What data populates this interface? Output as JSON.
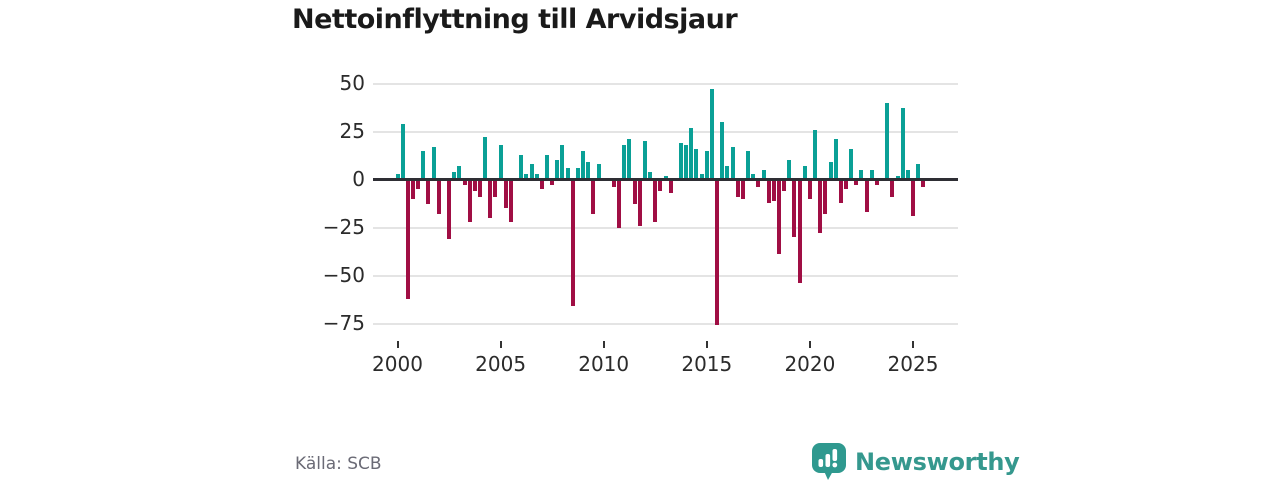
{
  "title": "Nettoinflyttning till Arvidsjaur",
  "source": {
    "label": "Källa: SCB"
  },
  "branding": {
    "name": "Newsworthy"
  },
  "colors": {
    "positive": "#0aa096",
    "negative": "#a00e44",
    "grid": "#e4e4e4",
    "zero_line": "#2e2e34",
    "title_text": "#1a1a1a",
    "axis_text": "#2b2b2b",
    "source_text": "#6b6b76",
    "brand": "#35988e"
  },
  "chart_data": {
    "type": "bar",
    "title": "Nettoinflyttning till Arvidsjaur",
    "xlabel": "",
    "ylabel": "",
    "period": "quarterly",
    "start": "2000 Q1",
    "end": "2025 Q3",
    "ylim": [
      -80,
      55
    ],
    "grid": true,
    "legend": false,
    "y_ticks": [
      50,
      25,
      0,
      -25,
      -50,
      -75
    ],
    "x_ticks": [
      2000,
      2005,
      2010,
      2015,
      2020,
      2025
    ],
    "values": [
      3,
      29,
      -62,
      -10,
      -5,
      15,
      -13,
      17,
      -18,
      0,
      -31,
      4,
      7,
      -3,
      -22,
      -6,
      -9,
      22,
      -20,
      -9,
      18,
      -15,
      -22,
      0,
      13,
      3,
      8,
      3,
      -5,
      13,
      -3,
      10,
      18,
      6,
      -66,
      6,
      15,
      9,
      -18,
      8,
      0,
      0,
      -4,
      -25,
      18,
      21,
      -13,
      -24,
      20,
      4,
      -22,
      -6,
      2,
      -7,
      0,
      19,
      18,
      27,
      16,
      3,
      15,
      47,
      -76,
      30,
      7,
      17,
      -9,
      -10,
      15,
      3,
      -4,
      5,
      -12,
      -11,
      -39,
      -6,
      10,
      -30,
      -54,
      7,
      -10,
      26,
      -28,
      -18,
      9,
      21,
      -12,
      -5,
      16,
      -3,
      5,
      -17,
      5,
      -3,
      0,
      40,
      -9,
      2,
      37,
      5,
      -19,
      8,
      -4
    ]
  }
}
